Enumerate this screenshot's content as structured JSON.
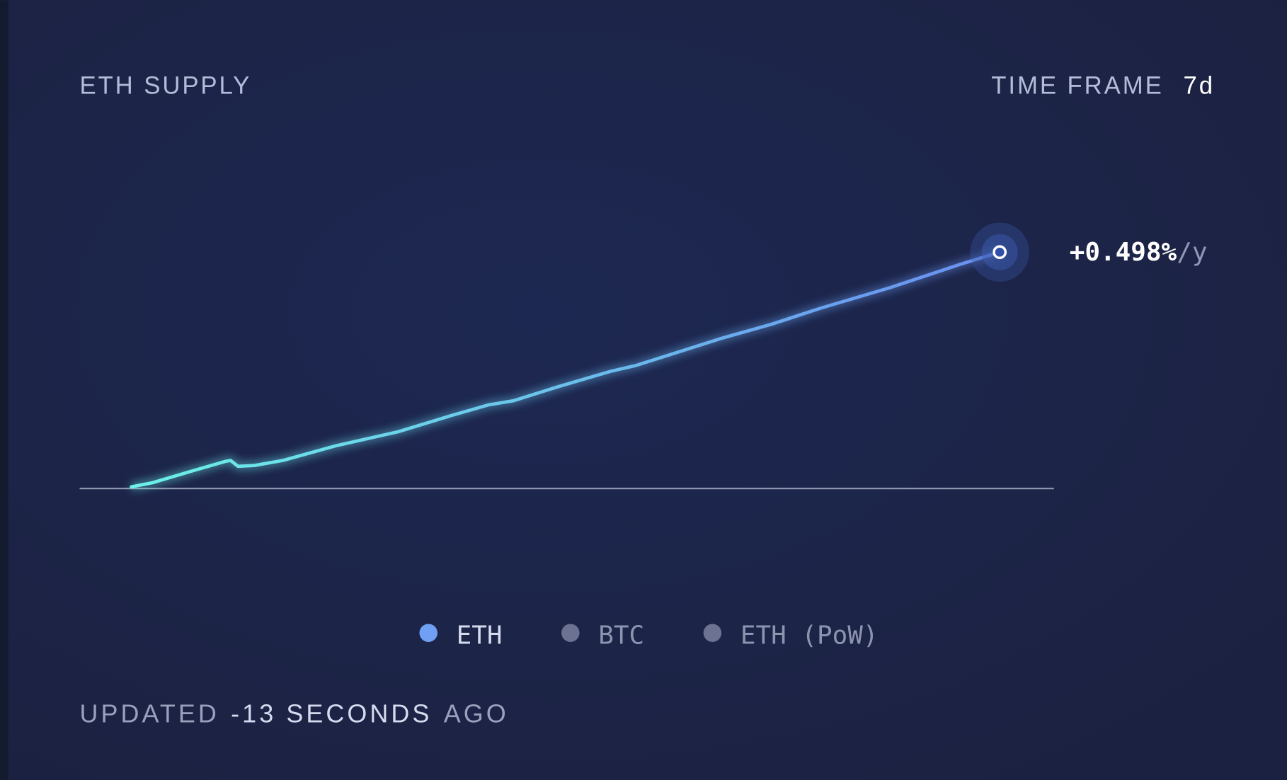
{
  "chart_data": {
    "type": "line",
    "title": "ETH SUPPLY",
    "time_frame_label": "TIME FRAME",
    "time_frame": "7d",
    "x": [
      0,
      0.17,
      0.46,
      0.76,
      0.8,
      0.86,
      0.99,
      1.22,
      1.65,
      2.15,
      2.58,
      2.88,
      3.08,
      3.44,
      3.87,
      4.07,
      4.76,
      5.16,
      5.56,
      6.12,
      6.68,
      7
    ],
    "series": [
      {
        "name": "ETH",
        "color": "#6fa0f4",
        "gradient": [
          "#6cf2e8",
          "#6a8ef0"
        ],
        "values": [
          80,
          280,
          800,
          1320,
          1360,
          1080,
          1120,
          1360,
          2080,
          2760,
          3550,
          4070,
          4270,
          4950,
          5710,
          5990,
          7310,
          7990,
          8780,
          9780,
          10900,
          11500
        ]
      }
    ],
    "other_series": [
      {
        "name": "BTC",
        "color": "#6c7291"
      },
      {
        "name": "ETH (PoW)",
        "color": "#6c7291"
      }
    ],
    "xlim": [
      0,
      7
    ],
    "ylim": [
      0,
      11500
    ],
    "end_label": "+0.498%",
    "end_unit": "/y",
    "updated": [
      "UPDATED",
      "-13 SECONDS",
      "AGO"
    ]
  }
}
